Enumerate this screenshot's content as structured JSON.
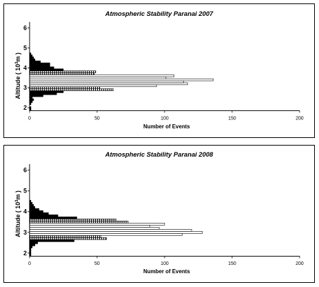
{
  "chart_data": [
    {
      "type": "bar",
      "orientation": "horizontal",
      "title": "Atmospheric Stability Paranai 2007",
      "xlabel": "Number of Events",
      "ylabel": "Altitude ( 10",
      "ylabel_sup": "3",
      "ylabel_tail": "m )",
      "xlim": [
        0,
        200
      ],
      "ylim": [
        1.85,
        6.1
      ],
      "xticks": [
        "0",
        "50",
        "100",
        "150",
        "200"
      ],
      "yticks": [
        "2",
        "3",
        "4",
        "5",
        "6"
      ],
      "bar_height": 0.1,
      "bars": [
        {
          "y": 1.9,
          "value": 1,
          "style": "solid"
        },
        {
          "y": 2.0,
          "value": 1,
          "style": "solid"
        },
        {
          "y": 2.1,
          "value": 0,
          "style": "solid"
        },
        {
          "y": 2.2,
          "value": 1,
          "style": "solid"
        },
        {
          "y": 2.3,
          "value": 2,
          "style": "solid"
        },
        {
          "y": 2.4,
          "value": 3,
          "style": "solid"
        },
        {
          "y": 2.5,
          "value": 2,
          "style": "solid"
        },
        {
          "y": 2.6,
          "value": 10,
          "style": "solid"
        },
        {
          "y": 2.7,
          "value": 20,
          "style": "solid"
        },
        {
          "y": 2.8,
          "value": 25,
          "style": "solid"
        },
        {
          "y": 2.9,
          "value": 62,
          "style": "hatched"
        },
        {
          "y": 3.0,
          "value": 52,
          "style": "hatched"
        },
        {
          "y": 3.1,
          "value": 94,
          "style": "open"
        },
        {
          "y": 3.2,
          "value": 117,
          "style": "open"
        },
        {
          "y": 3.3,
          "value": 114,
          "style": "open"
        },
        {
          "y": 3.4,
          "value": 136,
          "style": "open"
        },
        {
          "y": 3.5,
          "value": 101,
          "style": "open"
        },
        {
          "y": 3.6,
          "value": 107,
          "style": "open"
        },
        {
          "y": 3.7,
          "value": 48,
          "style": "hatched"
        },
        {
          "y": 3.8,
          "value": 49,
          "style": "hatched"
        },
        {
          "y": 3.9,
          "value": 25,
          "style": "solid"
        },
        {
          "y": 4.0,
          "value": 18,
          "style": "solid"
        },
        {
          "y": 4.1,
          "value": 15,
          "style": "solid"
        },
        {
          "y": 4.2,
          "value": 15,
          "style": "solid"
        },
        {
          "y": 4.3,
          "value": 8,
          "style": "solid"
        },
        {
          "y": 4.4,
          "value": 4,
          "style": "solid"
        },
        {
          "y": 4.5,
          "value": 3,
          "style": "solid"
        },
        {
          "y": 4.6,
          "value": 2,
          "style": "solid"
        },
        {
          "y": 4.7,
          "value": 1,
          "style": "solid"
        }
      ]
    },
    {
      "type": "bar",
      "orientation": "horizontal",
      "title": "Atmospheric Stability Paranai 2008",
      "xlabel": "Number of Events",
      "ylabel": "Altitude ( 10",
      "ylabel_sup": "3",
      "ylabel_tail": "m )",
      "xlim": [
        0,
        200
      ],
      "ylim": [
        1.85,
        6.1
      ],
      "xticks": [
        "0",
        "50",
        "100",
        "150",
        "200"
      ],
      "yticks": [
        "2",
        "3",
        "4",
        "5",
        "6"
      ],
      "bar_height": 0.1,
      "bars": [
        {
          "y": 1.9,
          "value": 1,
          "style": "solid"
        },
        {
          "y": 2.0,
          "value": 1,
          "style": "solid"
        },
        {
          "y": 2.1,
          "value": 1,
          "style": "solid"
        },
        {
          "y": 2.2,
          "value": 1,
          "style": "solid"
        },
        {
          "y": 2.3,
          "value": 2,
          "style": "solid"
        },
        {
          "y": 2.4,
          "value": 4,
          "style": "solid"
        },
        {
          "y": 2.5,
          "value": 6,
          "style": "solid"
        },
        {
          "y": 2.6,
          "value": 33,
          "style": "solid"
        },
        {
          "y": 2.7,
          "value": 57,
          "style": "hatched"
        },
        {
          "y": 2.8,
          "value": 53,
          "style": "hatched"
        },
        {
          "y": 2.9,
          "value": 113,
          "style": "open"
        },
        {
          "y": 3.0,
          "value": 128,
          "style": "open"
        },
        {
          "y": 3.1,
          "value": 120,
          "style": "open"
        },
        {
          "y": 3.2,
          "value": 96,
          "style": "open"
        },
        {
          "y": 3.3,
          "value": 89,
          "style": "open"
        },
        {
          "y": 3.4,
          "value": 100,
          "style": "open"
        },
        {
          "y": 3.5,
          "value": 73,
          "style": "hatched"
        },
        {
          "y": 3.6,
          "value": 64,
          "style": "hatched"
        },
        {
          "y": 3.7,
          "value": 35,
          "style": "solid"
        },
        {
          "y": 3.8,
          "value": 21,
          "style": "solid"
        },
        {
          "y": 3.9,
          "value": 14,
          "style": "solid"
        },
        {
          "y": 4.0,
          "value": 10,
          "style": "solid"
        },
        {
          "y": 4.1,
          "value": 7,
          "style": "solid"
        },
        {
          "y": 4.2,
          "value": 4,
          "style": "solid"
        },
        {
          "y": 4.3,
          "value": 3,
          "style": "solid"
        },
        {
          "y": 4.4,
          "value": 2,
          "style": "solid"
        },
        {
          "y": 4.5,
          "value": 1,
          "style": "solid"
        }
      ]
    }
  ]
}
